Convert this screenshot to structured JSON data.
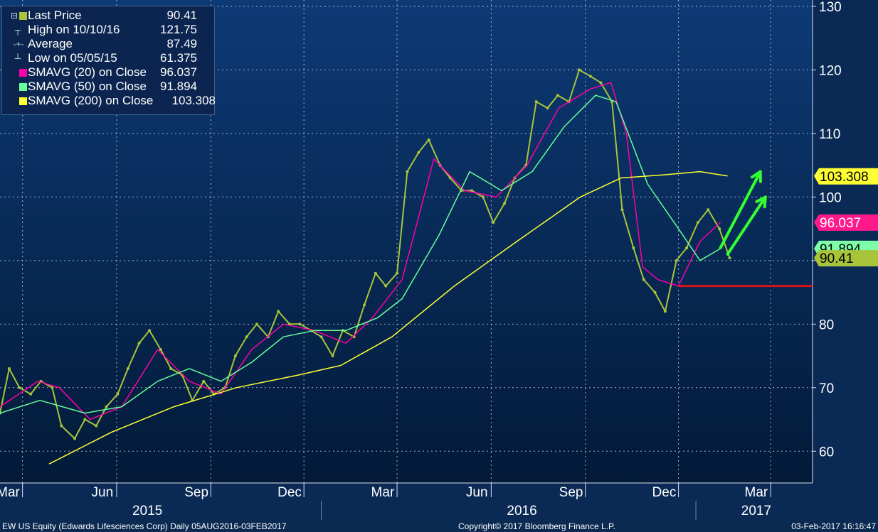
{
  "chart_data": {
    "type": "line",
    "security": "EW US Equity (Edwards Lifesciences Corp)",
    "footer": {
      "left": "EW US Equity (Edwards Lifesciences Corp)   Daily 05AUG2016-03FEB2017",
      "center": "Copyright© 2017 Bloomberg Finance L.P.",
      "right": "03-Feb-2017 16:16:47"
    },
    "legend": [
      {
        "label": "Last Price",
        "value": "90.41",
        "color": "#a8c43a"
      },
      {
        "label": "High on 10/10/16",
        "value": "121.75",
        "color": ""
      },
      {
        "label": "Average",
        "value": "87.49",
        "color": ""
      },
      {
        "label": "Low on 05/05/15",
        "value": "61.375",
        "color": ""
      },
      {
        "label": "SMAVG (20) on Close",
        "value": "96.037",
        "color": "#ff00aa"
      },
      {
        "label": "SMAVG (50) on Close",
        "value": "91.894",
        "color": "#66ff99"
      },
      {
        "label": "SMAVG (200) on Close",
        "value": "103.308",
        "color": "#ffff33"
      }
    ],
    "y_axis": {
      "ticks": [
        60,
        70,
        80,
        90,
        100,
        110,
        120,
        130
      ],
      "ylim": [
        55,
        131
      ]
    },
    "x_axis": {
      "months": [
        "Mar",
        "Jun",
        "Sep",
        "Dec",
        "Mar",
        "Jun",
        "Sep",
        "Dec",
        "Mar"
      ],
      "years": [
        "2015",
        "2016",
        "2017"
      ],
      "xlim": [
        "2015-02-21",
        "2017-04-25"
      ]
    },
    "right_labels": [
      {
        "text": "103.308",
        "value": 103.308,
        "bg": "#ffff33",
        "fg": "#000000"
      },
      {
        "text": "96.037",
        "value": 96.037,
        "bg": "#ff1a8c",
        "fg": "#ffffff"
      },
      {
        "text": "91.894",
        "value": 91.894,
        "bg": "#7dffa8",
        "fg": "#000000"
      },
      {
        "text": "90.41",
        "value": 90.41,
        "bg": "#a8c43a",
        "fg": "#000000"
      }
    ],
    "support_line": {
      "value": 86,
      "color": "#d9141a",
      "from": "2016-12-15",
      "to": "2017-04-25"
    },
    "arrows": [
      {
        "from": {
          "x": "2017-01-25",
          "y": 92
        },
        "to": {
          "x": "2017-03-05",
          "y": 104
        }
      },
      {
        "from": {
          "x": "2017-02-01",
          "y": 91
        },
        "to": {
          "x": "2017-03-10",
          "y": 100
        }
      }
    ],
    "series": [
      {
        "name": "Last Price",
        "color": "#a8c43a",
        "points": [
          [
            "2015-02-21",
            66
          ],
          [
            "2015-03-02",
            73
          ],
          [
            "2015-03-12",
            70
          ],
          [
            "2015-03-23",
            69
          ],
          [
            "2015-04-02",
            71
          ],
          [
            "2015-04-13",
            70
          ],
          [
            "2015-04-22",
            64
          ],
          [
            "2015-05-05",
            62
          ],
          [
            "2015-05-15",
            65
          ],
          [
            "2015-05-26",
            64
          ],
          [
            "2015-06-05",
            67
          ],
          [
            "2015-06-16",
            69
          ],
          [
            "2015-06-26",
            73
          ],
          [
            "2015-07-07",
            77
          ],
          [
            "2015-07-17",
            79
          ],
          [
            "2015-07-28",
            76
          ],
          [
            "2015-08-07",
            73
          ],
          [
            "2015-08-18",
            72
          ],
          [
            "2015-08-28",
            68
          ],
          [
            "2015-09-08",
            71
          ],
          [
            "2015-09-18",
            69
          ],
          [
            "2015-09-29",
            70
          ],
          [
            "2015-10-09",
            75
          ],
          [
            "2015-10-20",
            78
          ],
          [
            "2015-10-30",
            80
          ],
          [
            "2015-11-10",
            78
          ],
          [
            "2015-11-20",
            82
          ],
          [
            "2015-12-01",
            80
          ],
          [
            "2015-12-11",
            80
          ],
          [
            "2015-12-22",
            79
          ],
          [
            "2016-01-01",
            78
          ],
          [
            "2016-01-12",
            75
          ],
          [
            "2016-01-22",
            79
          ],
          [
            "2016-02-02",
            78
          ],
          [
            "2016-02-12",
            83
          ],
          [
            "2016-02-23",
            88
          ],
          [
            "2016-03-04",
            86
          ],
          [
            "2016-03-15",
            88
          ],
          [
            "2016-03-25",
            104
          ],
          [
            "2016-04-05",
            107
          ],
          [
            "2016-04-15",
            109
          ],
          [
            "2016-04-26",
            105
          ],
          [
            "2016-05-06",
            103
          ],
          [
            "2016-05-17",
            101
          ],
          [
            "2016-05-27",
            101
          ],
          [
            "2016-06-07",
            100
          ],
          [
            "2016-06-17",
            96
          ],
          [
            "2016-06-28",
            99
          ],
          [
            "2016-07-08",
            103
          ],
          [
            "2016-07-19",
            105
          ],
          [
            "2016-07-29",
            115
          ],
          [
            "2016-08-09",
            114
          ],
          [
            "2016-08-19",
            116
          ],
          [
            "2016-08-30",
            115
          ],
          [
            "2016-09-09",
            120
          ],
          [
            "2016-09-20",
            119
          ],
          [
            "2016-09-30",
            118
          ],
          [
            "2016-10-11",
            115
          ],
          [
            "2016-10-21",
            98
          ],
          [
            "2016-11-01",
            92
          ],
          [
            "2016-11-11",
            87
          ],
          [
            "2016-11-22",
            85
          ],
          [
            "2016-12-02",
            82
          ],
          [
            "2016-12-13",
            90
          ],
          [
            "2016-12-23",
            92
          ],
          [
            "2017-01-03",
            96
          ],
          [
            "2017-01-13",
            98
          ],
          [
            "2017-01-24",
            95
          ],
          [
            "2017-02-03",
            90.41
          ]
        ]
      },
      {
        "name": "SMAVG (20) on Close",
        "color": "#ff00aa",
        "points": [
          [
            "2015-02-21",
            67
          ],
          [
            "2015-03-30",
            71
          ],
          [
            "2015-04-20",
            70
          ],
          [
            "2015-05-20",
            65
          ],
          [
            "2015-06-20",
            67
          ],
          [
            "2015-07-25",
            76
          ],
          [
            "2015-08-25",
            71
          ],
          [
            "2015-09-25",
            69
          ],
          [
            "2015-10-25",
            76
          ],
          [
            "2015-11-25",
            80
          ],
          [
            "2015-12-25",
            79
          ],
          [
            "2016-01-25",
            77
          ],
          [
            "2016-02-20",
            81
          ],
          [
            "2016-03-20",
            87
          ],
          [
            "2016-04-20",
            106
          ],
          [
            "2016-05-20",
            101
          ],
          [
            "2016-06-20",
            100
          ],
          [
            "2016-07-20",
            105
          ],
          [
            "2016-08-20",
            114
          ],
          [
            "2016-09-20",
            117
          ],
          [
            "2016-10-10",
            118
          ],
          [
            "2016-10-25",
            110
          ],
          [
            "2016-11-10",
            89
          ],
          [
            "2016-11-25",
            87
          ],
          [
            "2016-12-15",
            86
          ],
          [
            "2017-01-05",
            93
          ],
          [
            "2017-01-25",
            96.037
          ]
        ]
      },
      {
        "name": "SMAVG (50) on Close",
        "color": "#66ff99",
        "points": [
          [
            "2015-02-21",
            66
          ],
          [
            "2015-04-01",
            68
          ],
          [
            "2015-05-15",
            66
          ],
          [
            "2015-06-20",
            67
          ],
          [
            "2015-07-25",
            71
          ],
          [
            "2015-08-25",
            73
          ],
          [
            "2015-09-25",
            71
          ],
          [
            "2015-10-25",
            74
          ],
          [
            "2015-11-25",
            78
          ],
          [
            "2015-12-25",
            79
          ],
          [
            "2016-01-25",
            79
          ],
          [
            "2016-02-25",
            81
          ],
          [
            "2016-03-20",
            84
          ],
          [
            "2016-04-25",
            94
          ],
          [
            "2016-05-25",
            104
          ],
          [
            "2016-06-25",
            101
          ],
          [
            "2016-07-25",
            104
          ],
          [
            "2016-08-25",
            111
          ],
          [
            "2016-09-25",
            116
          ],
          [
            "2016-10-15",
            115
          ],
          [
            "2016-11-15",
            102
          ],
          [
            "2016-12-15",
            95
          ],
          [
            "2017-01-05",
            90
          ],
          [
            "2017-01-25",
            91.894
          ]
        ]
      },
      {
        "name": "SMAVG (200) on Close",
        "color": "#ffff33",
        "points": [
          [
            "2015-04-10",
            58
          ],
          [
            "2015-06-10",
            63
          ],
          [
            "2015-08-10",
            67
          ],
          [
            "2015-10-10",
            70
          ],
          [
            "2015-12-10",
            72
          ],
          [
            "2016-01-20",
            73.5
          ],
          [
            "2016-03-10",
            78
          ],
          [
            "2016-05-10",
            86
          ],
          [
            "2016-07-10",
            93
          ],
          [
            "2016-09-10",
            100
          ],
          [
            "2016-10-20",
            103
          ],
          [
            "2016-12-01",
            103.5
          ],
          [
            "2017-01-05",
            104
          ],
          [
            "2017-02-01",
            103.308
          ]
        ]
      }
    ]
  }
}
